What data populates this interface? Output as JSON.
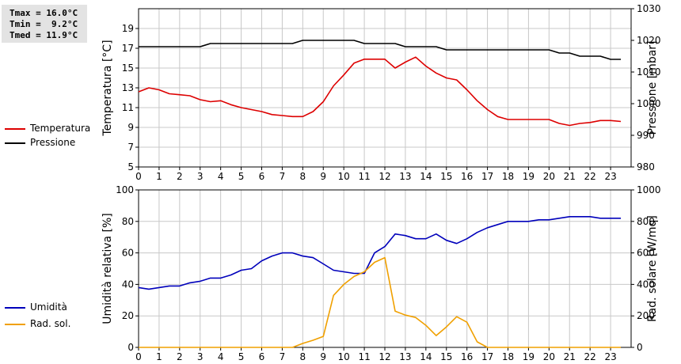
{
  "stats": {
    "tmax": "Tmax = 16.0°C",
    "tmin": "Tmin =  9.2°C",
    "tmed": "Tmed = 11.9°C"
  },
  "chart_data": [
    {
      "type": "line",
      "xlim": [
        0,
        24
      ],
      "x_ticks": [
        "0",
        "1",
        "2",
        "3",
        "4",
        "5",
        "6",
        "7",
        "8",
        "9",
        "10",
        "11",
        "12",
        "13",
        "14",
        "15",
        "16",
        "17",
        "18",
        "19",
        "20",
        "21",
        "22",
        "23"
      ],
      "ylabel_left": "Temperatura [°C]",
      "ylabel_right": "Pressione [mbar]",
      "ylim_left": [
        5,
        21
      ],
      "ylim_right": [
        980,
        1030
      ],
      "y_ticks_left": [
        "5",
        "7",
        "9",
        "11",
        "13",
        "15",
        "17",
        "19"
      ],
      "y_ticks_right": [
        "980",
        "990",
        "1000",
        "1010",
        "1020",
        "1030"
      ],
      "grid": true,
      "series": [
        {
          "name": "Temperatura",
          "axis": "left",
          "color": "#dd0000",
          "x": [
            0,
            0.5,
            1,
            1.5,
            2,
            2.5,
            3,
            3.5,
            4,
            4.5,
            5,
            5.5,
            6,
            6.5,
            7,
            7.5,
            8,
            8.5,
            9,
            9.5,
            10,
            10.5,
            11,
            11.5,
            12,
            12.5,
            13,
            13.5,
            14,
            14.5,
            15,
            15.5,
            16,
            16.5,
            17,
            17.5,
            18,
            18.5,
            19,
            19.5,
            20,
            20.5,
            21,
            21.5,
            22,
            22.5,
            23,
            23.5
          ],
          "values": [
            12.6,
            13.0,
            12.8,
            12.4,
            12.3,
            12.2,
            11.8,
            11.6,
            11.7,
            11.3,
            11.0,
            10.8,
            10.6,
            10.3,
            10.2,
            10.1,
            10.1,
            10.6,
            11.6,
            13.2,
            14.3,
            15.5,
            15.9,
            15.9,
            15.9,
            15.0,
            15.6,
            16.1,
            15.2,
            14.5,
            14.0,
            13.8,
            12.8,
            11.7,
            10.8,
            10.1,
            9.8,
            9.8,
            9.8,
            9.8,
            9.8,
            9.4,
            9.2,
            9.4,
            9.5,
            9.7,
            9.7,
            9.6
          ]
        },
        {
          "name": "Pressione",
          "axis": "right",
          "color": "#000000",
          "x": [
            0,
            0.5,
            1,
            1.5,
            2,
            2.5,
            3,
            3.5,
            4,
            4.5,
            5,
            5.5,
            6,
            6.5,
            7,
            7.5,
            8,
            8.5,
            9,
            9.5,
            10,
            10.5,
            11,
            11.5,
            12,
            12.5,
            13,
            13.5,
            14,
            14.5,
            15,
            15.5,
            16,
            16.5,
            17,
            17.5,
            18,
            18.5,
            19,
            19.5,
            20,
            20.5,
            21,
            21.5,
            22,
            22.5,
            23,
            23.5
          ],
          "values": [
            1018,
            1018,
            1018,
            1018,
            1018,
            1018,
            1018,
            1019,
            1019,
            1019,
            1019,
            1019,
            1019,
            1019,
            1019,
            1019,
            1020,
            1020,
            1020,
            1020,
            1020,
            1020,
            1019,
            1019,
            1019,
            1019,
            1018,
            1018,
            1018,
            1018,
            1017,
            1017,
            1017,
            1017,
            1017,
            1017,
            1017,
            1017,
            1017,
            1017,
            1017,
            1016,
            1016,
            1015,
            1015,
            1015,
            1014,
            1014
          ]
        }
      ]
    },
    {
      "type": "line",
      "xlim": [
        0,
        24
      ],
      "x_ticks": [
        "0",
        "1",
        "2",
        "3",
        "4",
        "5",
        "6",
        "7",
        "8",
        "9",
        "10",
        "11",
        "12",
        "13",
        "14",
        "15",
        "16",
        "17",
        "18",
        "19",
        "20",
        "21",
        "22",
        "23"
      ],
      "ylabel_left": "Umidità relativa [%]",
      "ylabel_right": "Rad. solare [W/mq]",
      "ylim_left": [
        0,
        100
      ],
      "ylim_right": [
        0,
        1000
      ],
      "y_ticks_left": [
        "0",
        "20",
        "40",
        "60",
        "80",
        "100"
      ],
      "y_ticks_right": [
        "0",
        "200",
        "400",
        "600",
        "800",
        "1000"
      ],
      "grid": true,
      "series": [
        {
          "name": "Umidità",
          "axis": "left",
          "color": "#0000bb",
          "x": [
            0,
            0.5,
            1,
            1.5,
            2,
            2.5,
            3,
            3.5,
            4,
            4.5,
            5,
            5.5,
            6,
            6.5,
            7,
            7.5,
            8,
            8.5,
            9,
            9.5,
            10,
            10.5,
            11,
            11.5,
            12,
            12.5,
            13,
            13.5,
            14,
            14.5,
            15,
            15.5,
            16,
            16.5,
            17,
            17.5,
            18,
            18.5,
            19,
            19.5,
            20,
            20.5,
            21,
            21.5,
            22,
            22.5,
            23,
            23.5
          ],
          "values": [
            38,
            37,
            38,
            39,
            39,
            41,
            42,
            44,
            44,
            46,
            49,
            50,
            55,
            58,
            60,
            60,
            58,
            57,
            53,
            49,
            48,
            47,
            47,
            60,
            64,
            72,
            71,
            69,
            69,
            72,
            68,
            66,
            69,
            73,
            76,
            78,
            80,
            80,
            80,
            81,
            81,
            82,
            83,
            83,
            83,
            82,
            82,
            82
          ]
        },
        {
          "name": "Rad. sol.",
          "axis": "right",
          "color": "#f0a000",
          "x": [
            0,
            0.5,
            1,
            1.5,
            2,
            2.5,
            3,
            3.5,
            4,
            4.5,
            5,
            5.5,
            6,
            6.5,
            7,
            7.5,
            8,
            8.5,
            9,
            9.5,
            10,
            10.5,
            11,
            11.5,
            12,
            12.5,
            13,
            13.5,
            14,
            14.5,
            15,
            15.5,
            16,
            16.5,
            17,
            17.5,
            18,
            18.5,
            19,
            19.5,
            20,
            20.5,
            21,
            21.5,
            22,
            22.5,
            23,
            23.5
          ],
          "values": [
            0,
            0,
            0,
            0,
            0,
            0,
            0,
            0,
            0,
            0,
            0,
            0,
            0,
            0,
            0,
            0,
            25,
            45,
            70,
            330,
            400,
            450,
            480,
            540,
            570,
            230,
            205,
            190,
            140,
            75,
            130,
            195,
            160,
            35,
            0,
            0,
            0,
            0,
            0,
            0,
            0,
            0,
            0,
            0,
            0,
            0,
            0,
            0
          ]
        }
      ]
    }
  ]
}
